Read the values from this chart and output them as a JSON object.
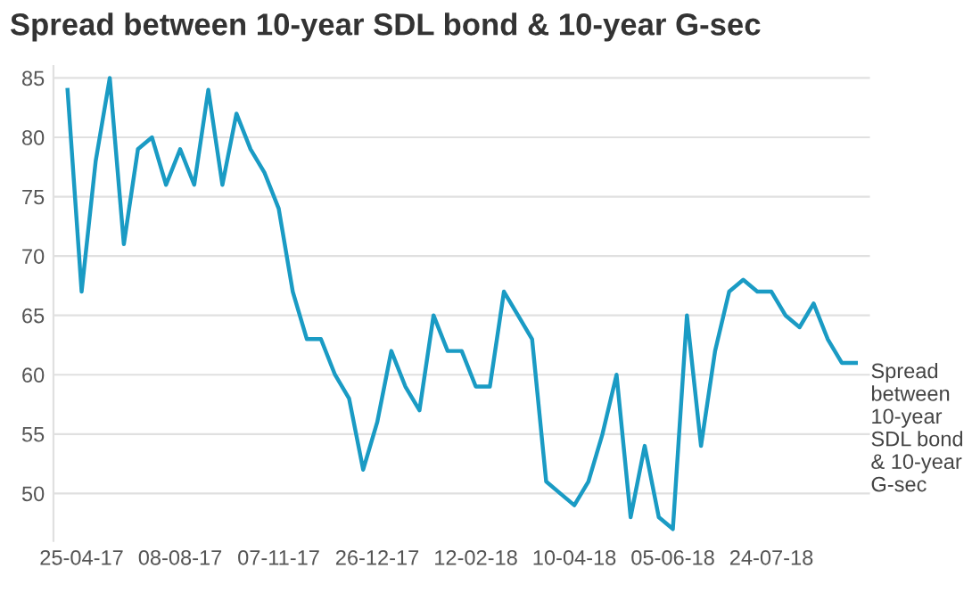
{
  "chart_data": {
    "type": "line",
    "title": "Spread between 10-year SDL bond & 10-year G-sec",
    "categories": [
      null,
      "25-04-17",
      null,
      null,
      null,
      null,
      null,
      null,
      "08-08-17",
      null,
      null,
      null,
      null,
      null,
      null,
      "07-11-17",
      null,
      null,
      null,
      null,
      null,
      null,
      "26-12-17",
      null,
      null,
      null,
      null,
      null,
      null,
      "12-02-18",
      null,
      null,
      null,
      null,
      null,
      null,
      "10-04-18",
      null,
      null,
      null,
      null,
      null,
      null,
      "05-06-18",
      null,
      null,
      null,
      null,
      null,
      null,
      "24-07-18",
      null,
      null,
      null,
      null,
      null,
      null
    ],
    "series": [
      {
        "name": "Spread between 10-year SDL bond & 10-year G-sec",
        "color": "#1a9bc4",
        "values": [
          84,
          67,
          78,
          85,
          71,
          79,
          80,
          76,
          79,
          76,
          84,
          76,
          82,
          79,
          77,
          74,
          67,
          63,
          63,
          60,
          58,
          52,
          56,
          62,
          59,
          57,
          65,
          62,
          62,
          59,
          59,
          67,
          65,
          63,
          51,
          50,
          49,
          51,
          55,
          60,
          48,
          54,
          48,
          47,
          65,
          54,
          62,
          67,
          68,
          67,
          67,
          65,
          64,
          66,
          63,
          61,
          61
        ]
      }
    ],
    "ylim": [
      46,
      86
    ],
    "yticks": [
      50,
      55,
      60,
      65,
      70,
      75,
      80,
      85
    ],
    "grid": "y",
    "legend": false,
    "marker": "none",
    "line_style": "solid"
  }
}
